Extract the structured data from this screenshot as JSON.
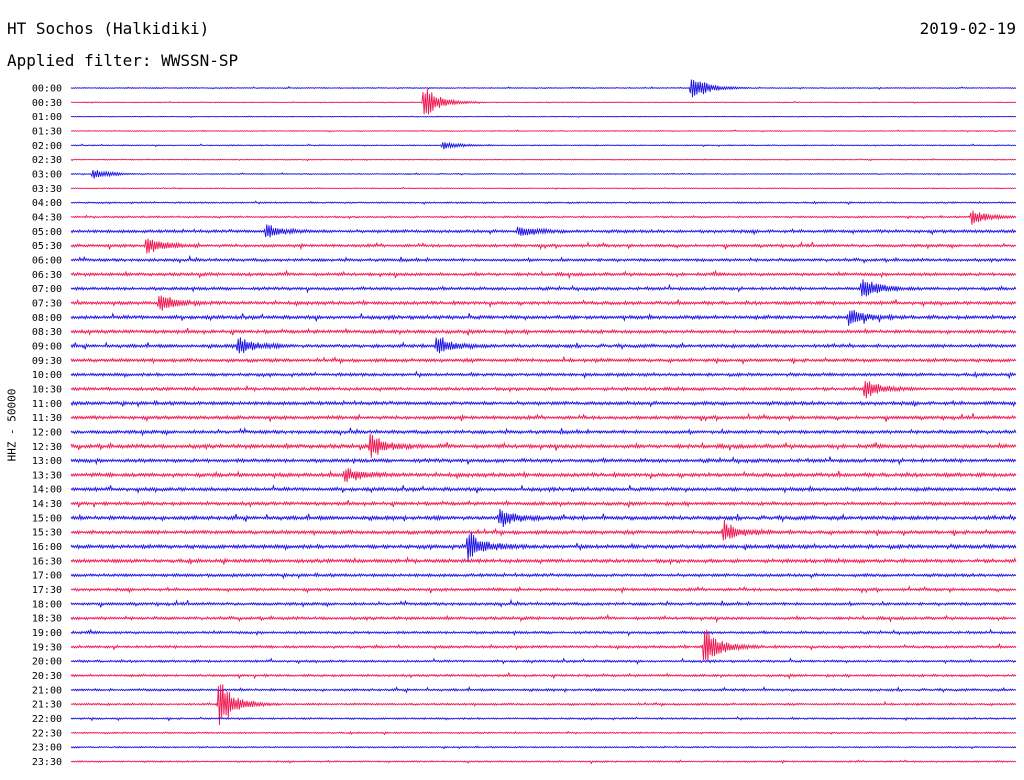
{
  "header": {
    "station": "HT Sochos (Halkidiki)",
    "date": "2019-02-19",
    "filter": "Applied filter: WWSSN-SP"
  },
  "chart_data": {
    "type": "line",
    "ylabel": "HHZ - 50000",
    "row_labels": [
      "00:00",
      "00:30",
      "01:00",
      "01:30",
      "02:00",
      "02:30",
      "03:00",
      "03:30",
      "04:00",
      "04:30",
      "05:00",
      "05:30",
      "06:00",
      "06:30",
      "07:00",
      "07:30",
      "08:00",
      "08:30",
      "09:00",
      "09:30",
      "10:00",
      "10:30",
      "11:00",
      "11:30",
      "12:00",
      "12:30",
      "13:00",
      "13:30",
      "14:00",
      "14:30",
      "15:00",
      "15:30",
      "16:00",
      "16:30",
      "17:00",
      "17:30",
      "18:00",
      "18:30",
      "19:00",
      "19:30",
      "20:00",
      "20:30",
      "21:00",
      "21:30",
      "22:00",
      "22:30",
      "23:00",
      "23:30"
    ],
    "x_range_minutes": [
      0,
      30
    ],
    "colors": [
      "#1a10e6",
      "#f0154f"
    ],
    "noise_levels": [
      0.4,
      0.3,
      0.3,
      0.35,
      0.4,
      0.35,
      0.4,
      0.35,
      0.6,
      0.7,
      1.2,
      1.1,
      1.1,
      1.2,
      1.2,
      1.3,
      1.4,
      1.3,
      1.3,
      1.3,
      1.2,
      1.2,
      1.4,
      1.3,
      1.3,
      1.5,
      1.4,
      1.5,
      1.4,
      1.3,
      1.5,
      1.4,
      1.5,
      1.4,
      1.2,
      1.1,
      1.1,
      1.1,
      1.0,
      1.0,
      0.9,
      0.9,
      0.9,
      0.8,
      0.7,
      0.6,
      0.6,
      0.6
    ],
    "events": [
      {
        "row": 0,
        "minute": 19.7,
        "amplitude": 14
      },
      {
        "row": 1,
        "minute": 11.2,
        "amplitude": 18
      },
      {
        "row": 4,
        "minute": 11.8,
        "amplitude": 4
      },
      {
        "row": 6,
        "minute": 0.7,
        "amplitude": 5
      },
      {
        "row": 9,
        "minute": 28.6,
        "amplitude": 8
      },
      {
        "row": 10,
        "minute": 6.2,
        "amplitude": 7
      },
      {
        "row": 10,
        "minute": 14.2,
        "amplitude": 6
      },
      {
        "row": 11,
        "minute": 2.4,
        "amplitude": 9
      },
      {
        "row": 14,
        "minute": 25.1,
        "amplitude": 12
      },
      {
        "row": 15,
        "minute": 2.8,
        "amplitude": 8
      },
      {
        "row": 16,
        "minute": 24.7,
        "amplitude": 9
      },
      {
        "row": 18,
        "minute": 5.3,
        "amplitude": 9
      },
      {
        "row": 18,
        "minute": 11.6,
        "amplitude": 9
      },
      {
        "row": 21,
        "minute": 25.2,
        "amplitude": 10
      },
      {
        "row": 25,
        "minute": 9.5,
        "amplitude": 12
      },
      {
        "row": 27,
        "minute": 8.7,
        "amplitude": 7
      },
      {
        "row": 30,
        "minute": 13.6,
        "amplitude": 10
      },
      {
        "row": 31,
        "minute": 20.7,
        "amplitude": 10
      },
      {
        "row": 32,
        "minute": 12.6,
        "amplitude": 16
      },
      {
        "row": 39,
        "minute": 20.1,
        "amplitude": 20
      },
      {
        "row": 43,
        "minute": 4.7,
        "amplitude": 26
      }
    ]
  }
}
